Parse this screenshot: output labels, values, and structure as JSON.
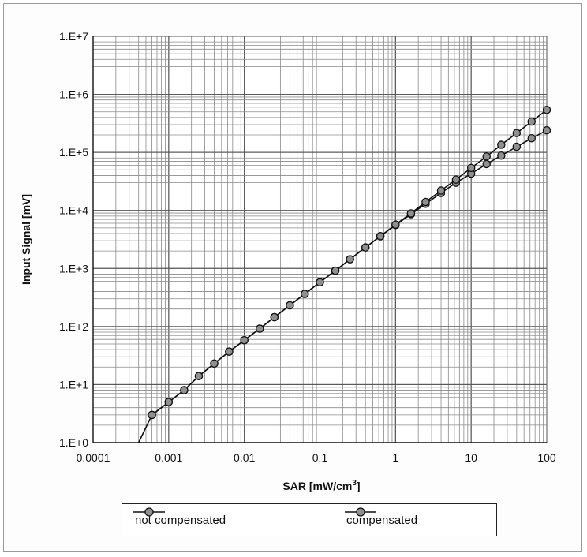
{
  "chart_data": {
    "type": "line",
    "xscale": "log",
    "yscale": "log",
    "xlim": [
      0.0001,
      100
    ],
    "ylim": [
      1,
      10000000
    ],
    "grid": true,
    "legend_position": "bottom",
    "xlabel_main": "SAR [mW/cm",
    "xlabel_sup": "3",
    "xlabel_end": "]",
    "ylabel": "Input Signal  [mV]",
    "xticks": [
      "0.0001",
      "0.001",
      "0.01",
      "0.1",
      "1",
      "10",
      "100"
    ],
    "yticks": [
      "1.E+0",
      "1.E+1",
      "1.E+2",
      "1.E+3",
      "1.E+4",
      "1.E+5",
      "1.E+6",
      "1.E+7"
    ],
    "series": [
      {
        "name": "not compensated",
        "color": "#8f8f8f",
        "x": [
          0.0006,
          0.001,
          0.0016,
          0.0025,
          0.004,
          0.0063,
          0.01,
          0.016,
          0.025,
          0.04,
          0.063,
          0.1,
          0.16,
          0.25,
          0.4,
          0.63,
          1,
          1.6,
          2.5,
          4,
          6.3,
          10,
          16,
          25,
          40,
          63,
          100
        ],
        "y": [
          3,
          5,
          8,
          14,
          23,
          37,
          58,
          92,
          145,
          232,
          365,
          578,
          915,
          1440,
          2300,
          3600,
          5600,
          8600,
          13000,
          20000,
          30000,
          43000,
          63000,
          88000,
          125000,
          175000,
          240000
        ]
      },
      {
        "name": "compensated",
        "color": "#8f8f8f",
        "x": [
          0.0006,
          0.001,
          0.0016,
          0.0025,
          0.004,
          0.0063,
          0.01,
          0.016,
          0.025,
          0.04,
          0.063,
          0.1,
          0.16,
          0.25,
          0.4,
          0.63,
          1,
          1.6,
          2.5,
          4,
          6.3,
          10,
          16,
          25,
          40,
          63,
          100
        ],
        "y": [
          3,
          5,
          8,
          14,
          23,
          37,
          58,
          92,
          145,
          232,
          365,
          578,
          915,
          1440,
          2300,
          3600,
          5700,
          8900,
          14000,
          22000,
          34000,
          54000,
          85000,
          135000,
          215000,
          340000,
          540000
        ]
      }
    ],
    "extension_line": {
      "x": [
        0.0004,
        0.0006
      ],
      "y": [
        1,
        3
      ]
    }
  }
}
